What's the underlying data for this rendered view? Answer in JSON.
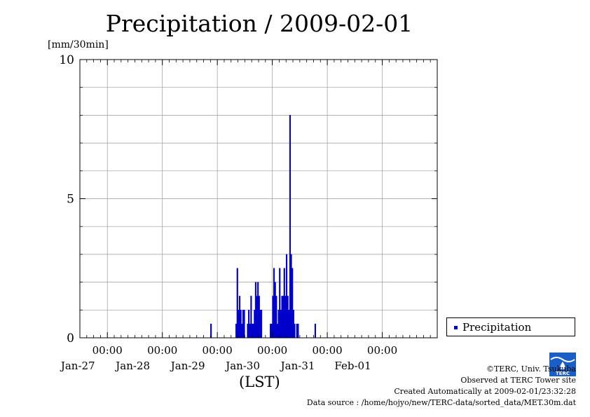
{
  "chart_data": {
    "type": "bar",
    "title": "Precipitation / 2009-02-01",
    "y_unit": "[mm/30min]",
    "xlabel": "(LST)",
    "ylim": [
      0,
      10
    ],
    "y_ticks": [
      "0",
      "5",
      "10"
    ],
    "x_range_days": [
      "Jan-26 12:00",
      "Feb-01 24:00"
    ],
    "x_ticks": [
      {
        "time": "00:00",
        "date": "Jan-27"
      },
      {
        "time": "00:00",
        "date": "Jan-28"
      },
      {
        "time": "00:00",
        "date": "Jan-29"
      },
      {
        "time": "00:00",
        "date": "Jan-30"
      },
      {
        "time": "00:00",
        "date": "Jan-31"
      },
      {
        "time": "00:00",
        "date": "Feb-01"
      }
    ],
    "grid": true,
    "legend_position": "bottom-right",
    "series": [
      {
        "name": "Precipitation",
        "color": "#0000cc",
        "points": [
          [
            "Jan-28 21:30",
            0.5
          ],
          [
            "Jan-29 08:30",
            0.5
          ],
          [
            "Jan-29 09:00",
            2.5
          ],
          [
            "Jan-29 09:30",
            1.0
          ],
          [
            "Jan-29 10:00",
            1.5
          ],
          [
            "Jan-29 10:30",
            1.0
          ],
          [
            "Jan-29 11:00",
            0.5
          ],
          [
            "Jan-29 11:30",
            1.0
          ],
          [
            "Jan-29 12:00",
            1.0
          ],
          [
            "Jan-29 13:30",
            0.5
          ],
          [
            "Jan-29 14:00",
            1.0
          ],
          [
            "Jan-29 14:30",
            0.5
          ],
          [
            "Jan-29 15:00",
            1.5
          ],
          [
            "Jan-29 15:30",
            0.5
          ],
          [
            "Jan-29 16:00",
            0.5
          ],
          [
            "Jan-29 16:30",
            1.0
          ],
          [
            "Jan-29 17:00",
            2.0
          ],
          [
            "Jan-29 17:30",
            1.5
          ],
          [
            "Jan-29 18:00",
            2.0
          ],
          [
            "Jan-29 18:30",
            1.5
          ],
          [
            "Jan-29 19:00",
            1.0
          ],
          [
            "Jan-29 19:30",
            1.0
          ],
          [
            "Jan-29 23:30",
            0.5
          ],
          [
            "Jan-30 00:00",
            0.5
          ],
          [
            "Jan-30 00:30",
            1.5
          ],
          [
            "Jan-30 01:00",
            2.5
          ],
          [
            "Jan-30 01:30",
            2.0
          ],
          [
            "Jan-30 02:00",
            1.5
          ],
          [
            "Jan-30 02:30",
            0.5
          ],
          [
            "Jan-30 03:00",
            1.0
          ],
          [
            "Jan-30 03:30",
            2.5
          ],
          [
            "Jan-30 04:00",
            1.0
          ],
          [
            "Jan-30 04:30",
            1.5
          ],
          [
            "Jan-30 05:00",
            1.5
          ],
          [
            "Jan-30 05:30",
            2.5
          ],
          [
            "Jan-30 06:00",
            1.5
          ],
          [
            "Jan-30 06:30",
            3.0
          ],
          [
            "Jan-30 07:00",
            1.5
          ],
          [
            "Jan-30 07:30",
            1.0
          ],
          [
            "Jan-30 08:00",
            8.0
          ],
          [
            "Jan-30 08:30",
            3.0
          ],
          [
            "Jan-30 09:00",
            2.5
          ],
          [
            "Jan-30 09:30",
            1.0
          ],
          [
            "Jan-30 10:00",
            0.5
          ],
          [
            "Jan-30 11:00",
            0.5
          ],
          [
            "Jan-30 11:30",
            0.5
          ],
          [
            "Jan-30 19:00",
            0.5
          ]
        ]
      }
    ]
  },
  "legend": {
    "label": "Precipitation"
  },
  "credits": {
    "copyright": "©TERC, Univ. Tsukuba",
    "observed": "Observed at TERC Tower site",
    "created": "Created Automatically at 2009-02-01/23:32:28",
    "source": "Data source : /home/hojyo/new/TERC-data/sorted_data/MET.30m.dat"
  },
  "logo": {
    "text": "TERC",
    "color": "#1a5fc8"
  }
}
